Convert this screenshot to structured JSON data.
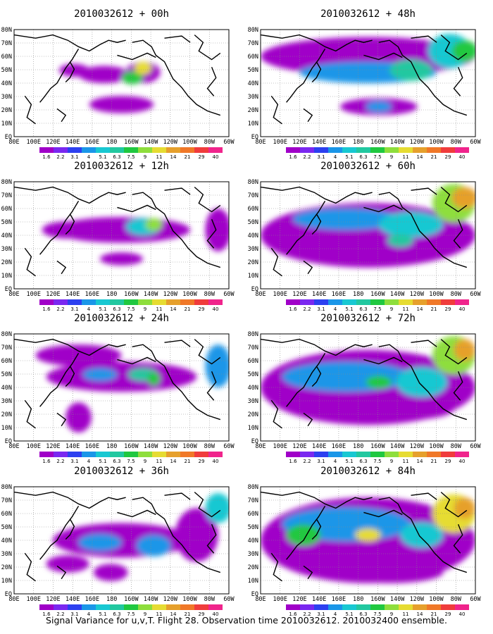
{
  "caption": "Signal Variance for u,v,T. Flight 28. Observation time 2010032612. 2010032400 ensemble.",
  "map": {
    "x_ticks": [
      "80E",
      "100E",
      "120E",
      "140E",
      "160E",
      "180",
      "160W",
      "140W",
      "120W",
      "100W",
      "80W",
      "60W"
    ],
    "y_ticks": [
      "80N",
      "70N",
      "60N",
      "50N",
      "40N",
      "30N",
      "20N",
      "10N",
      "EQ"
    ],
    "x_range": [
      "80E",
      "60W"
    ],
    "y_range": [
      "EQ",
      "80N"
    ],
    "grid": true
  },
  "colorbar": {
    "levels": [
      "1.6",
      "2.2",
      "3.1",
      "4",
      "5.1",
      "6.3",
      "7.5",
      "9",
      "11",
      "14",
      "21",
      "29",
      "40"
    ],
    "colors": [
      "#a000c8",
      "#7a28f0",
      "#2d40f0",
      "#1a96e8",
      "#18c8d2",
      "#22c8a0",
      "#20c840",
      "#8ede3c",
      "#e6dc32",
      "#e6a02c",
      "#f07828",
      "#f03c3c",
      "#f0248c"
    ]
  },
  "chart_data": {
    "type": "heatmap",
    "field": "Signal Variance for u,v,T",
    "panels": [
      {
        "title": "2010032612 + 00h",
        "lead_hours": 0
      },
      {
        "title": "2010032612 + 12h",
        "lead_hours": 12
      },
      {
        "title": "2010032612 + 24h",
        "lead_hours": 24
      },
      {
        "title": "2010032612 + 36h",
        "lead_hours": 36
      },
      {
        "title": "2010032612 + 48h",
        "lead_hours": 48
      },
      {
        "title": "2010032612 + 60h",
        "lead_hours": 60
      },
      {
        "title": "2010032612 + 72h",
        "lead_hours": 72
      },
      {
        "title": "2010032612 + 84h",
        "lead_hours": 84
      }
    ]
  }
}
